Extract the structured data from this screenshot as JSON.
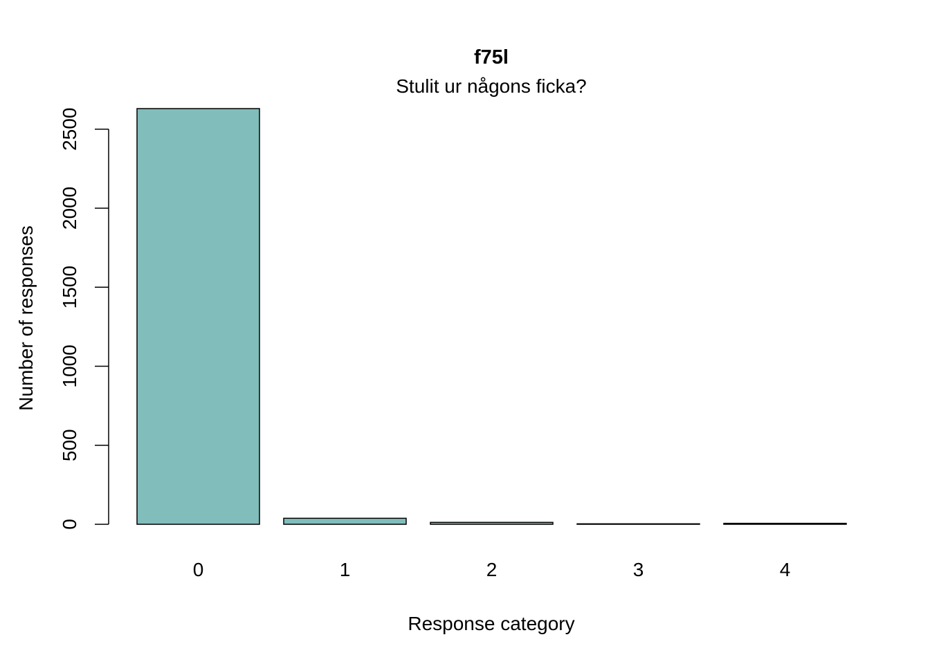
{
  "chart_data": {
    "type": "bar",
    "title": "f75l",
    "subtitle": "Stulit ur någons ficka?",
    "xlabel": "Response category",
    "ylabel": "Number of responses",
    "categories": [
      "0",
      "1",
      "2",
      "3",
      "4"
    ],
    "values": [
      2630,
      38,
      12,
      3,
      6
    ],
    "ylim": [
      0,
      2630
    ],
    "yticks": [
      0,
      500,
      1000,
      1500,
      2000,
      2500
    ],
    "bar_color": "#80bdbb",
    "grid": false,
    "legend": "none"
  }
}
